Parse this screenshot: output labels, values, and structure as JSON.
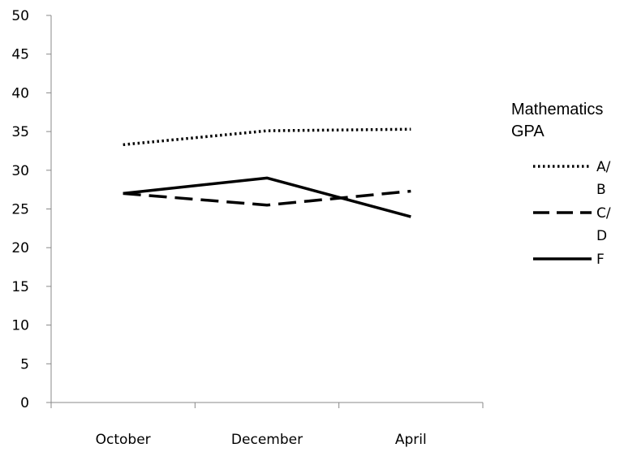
{
  "chart_data": {
    "type": "line",
    "categories": [
      "October",
      "December",
      "April"
    ],
    "ylim": [
      0,
      50
    ],
    "ytick_step": 5,
    "grid": false,
    "legend_position": "right",
    "legend_title": [
      "Mathematics",
      "GPA"
    ],
    "series": [
      {
        "name": "A/ B",
        "label_lines": [
          "A/",
          "B"
        ],
        "values": [
          33.3,
          35.1,
          35.3
        ],
        "color": "#000000",
        "style": "dotted"
      },
      {
        "name": "C/ D",
        "label_lines": [
          "C/",
          "D"
        ],
        "values": [
          27.0,
          25.5,
          27.3
        ],
        "color": "#000000",
        "style": "dashed"
      },
      {
        "name": "F",
        "label_lines": [
          "F"
        ],
        "values": [
          27.0,
          29.0,
          24.0
        ],
        "color": "#000000",
        "style": "solid"
      }
    ]
  }
}
